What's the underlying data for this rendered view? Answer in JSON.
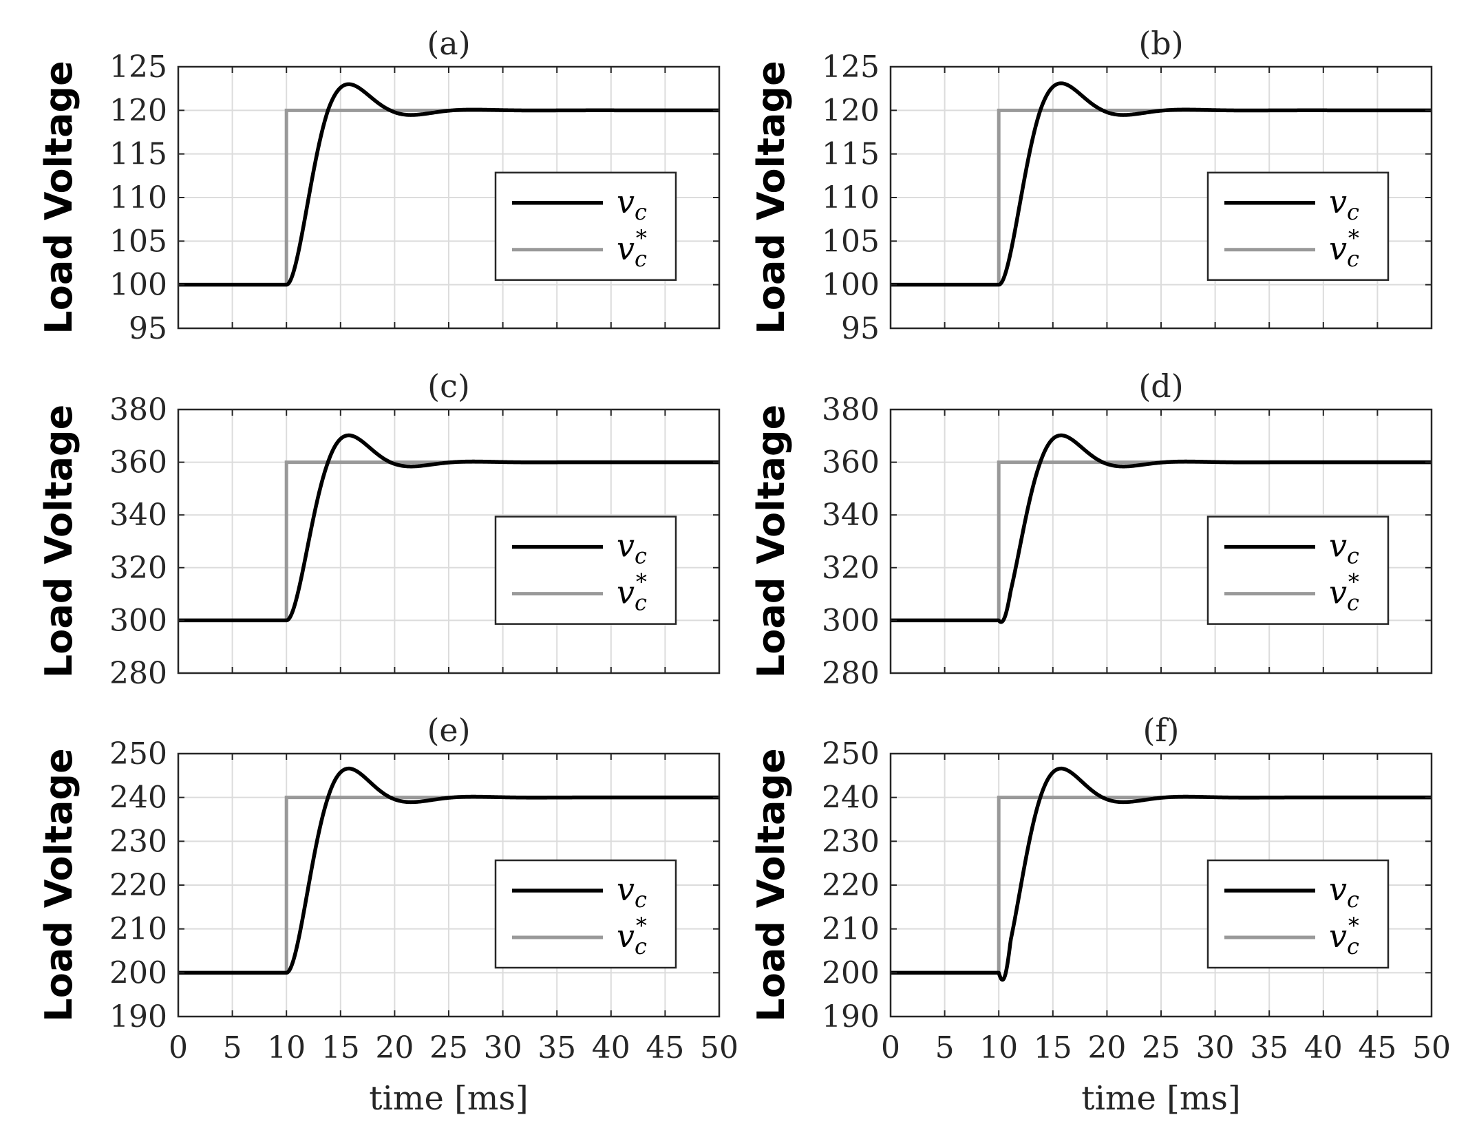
{
  "figure": {
    "background": "#ffffff"
  },
  "colors": {
    "vc": "#000000",
    "vc_ref": "#999999",
    "grid": "#dcdcdc",
    "axes": "#262626"
  },
  "chart_data": [
    {
      "type": "line",
      "title": "(a)",
      "xlabel": "",
      "ylabel": "Load Voltage",
      "xlim": [
        0,
        50
      ],
      "ylim": [
        95,
        125
      ],
      "xticks": [
        0,
        5,
        10,
        15,
        20,
        25,
        30,
        35,
        40,
        45,
        50
      ],
      "yticks": [
        95,
        100,
        105,
        110,
        115,
        120,
        125
      ],
      "show_xtick_labels": false,
      "grid": true,
      "legend": "center-right",
      "series": [
        {
          "name": "v_c",
          "response": {
            "initial": 100,
            "final": 120,
            "step_time": 10,
            "overshoot_pct": 15,
            "settle_time": 27,
            "undershoot": 0
          }
        },
        {
          "name": "v_c^*",
          "step": {
            "initial": 100,
            "final": 120,
            "step_time": 10
          }
        }
      ]
    },
    {
      "type": "line",
      "title": "(b)",
      "xlabel": "",
      "ylabel": "Load Voltage",
      "xlim": [
        0,
        50
      ],
      "ylim": [
        95,
        125
      ],
      "xticks": [
        0,
        5,
        10,
        15,
        20,
        25,
        30,
        35,
        40,
        45,
        50
      ],
      "yticks": [
        95,
        100,
        105,
        110,
        115,
        120,
        125
      ],
      "show_xtick_labels": false,
      "grid": true,
      "legend": "center-right",
      "series": [
        {
          "name": "v_c",
          "response": {
            "initial": 100,
            "final": 120,
            "step_time": 10,
            "overshoot_pct": 15.5,
            "settle_time": 27,
            "undershoot": 0
          }
        },
        {
          "name": "v_c^*",
          "step": {
            "initial": 100,
            "final": 120,
            "step_time": 10
          }
        }
      ]
    },
    {
      "type": "line",
      "title": "(c)",
      "xlabel": "",
      "ylabel": "Load Voltage",
      "xlim": [
        0,
        50
      ],
      "ylim": [
        280,
        380
      ],
      "xticks": [
        0,
        5,
        10,
        15,
        20,
        25,
        30,
        35,
        40,
        45,
        50
      ],
      "yticks": [
        280,
        300,
        320,
        340,
        360,
        380
      ],
      "show_xtick_labels": false,
      "grid": true,
      "legend": "center-right",
      "series": [
        {
          "name": "v_c",
          "response": {
            "initial": 300,
            "final": 360,
            "step_time": 10,
            "overshoot_pct": 17,
            "settle_time": 27,
            "undershoot": 0
          }
        },
        {
          "name": "v_c^*",
          "step": {
            "initial": 300,
            "final": 360,
            "step_time": 10
          }
        }
      ]
    },
    {
      "type": "line",
      "title": "(d)",
      "xlabel": "",
      "ylabel": "Load Voltage",
      "xlim": [
        0,
        50
      ],
      "ylim": [
        280,
        380
      ],
      "xticks": [
        0,
        5,
        10,
        15,
        20,
        25,
        30,
        35,
        40,
        45,
        50
      ],
      "yticks": [
        280,
        300,
        320,
        340,
        360,
        380
      ],
      "show_xtick_labels": false,
      "grid": true,
      "legend": "center-right",
      "series": [
        {
          "name": "v_c",
          "response": {
            "initial": 300,
            "final": 360,
            "step_time": 10,
            "overshoot_pct": 17,
            "settle_time": 27,
            "undershoot": 2
          }
        },
        {
          "name": "v_c^*",
          "step": {
            "initial": 300,
            "final": 360,
            "step_time": 10
          }
        }
      ]
    },
    {
      "type": "line",
      "title": "(e)",
      "xlabel": "time [ms]",
      "ylabel": "Load Voltage",
      "xlim": [
        0,
        50
      ],
      "ylim": [
        190,
        250
      ],
      "xticks": [
        0,
        5,
        10,
        15,
        20,
        25,
        30,
        35,
        40,
        45,
        50
      ],
      "yticks": [
        190,
        200,
        210,
        220,
        230,
        240,
        250
      ],
      "show_xtick_labels": true,
      "grid": true,
      "legend": "center-right",
      "series": [
        {
          "name": "v_c",
          "response": {
            "initial": 200,
            "final": 240,
            "step_time": 10,
            "overshoot_pct": 16.5,
            "settle_time": 27,
            "undershoot": 0
          }
        },
        {
          "name": "v_c^*",
          "step": {
            "initial": 200,
            "final": 240,
            "step_time": 10
          }
        }
      ]
    },
    {
      "type": "line",
      "title": "(f)",
      "xlabel": "time [ms]",
      "ylabel": "Load Voltage",
      "xlim": [
        0,
        50
      ],
      "ylim": [
        190,
        250
      ],
      "xticks": [
        0,
        5,
        10,
        15,
        20,
        25,
        30,
        35,
        40,
        45,
        50
      ],
      "yticks": [
        190,
        200,
        210,
        220,
        230,
        240,
        250
      ],
      "show_xtick_labels": true,
      "grid": true,
      "legend": "center-right",
      "series": [
        {
          "name": "v_c",
          "response": {
            "initial": 200,
            "final": 240,
            "step_time": 10,
            "overshoot_pct": 16.5,
            "settle_time": 27,
            "undershoot": 3
          }
        },
        {
          "name": "v_c^*",
          "step": {
            "initial": 200,
            "final": 240,
            "step_time": 10
          }
        }
      ]
    }
  ]
}
